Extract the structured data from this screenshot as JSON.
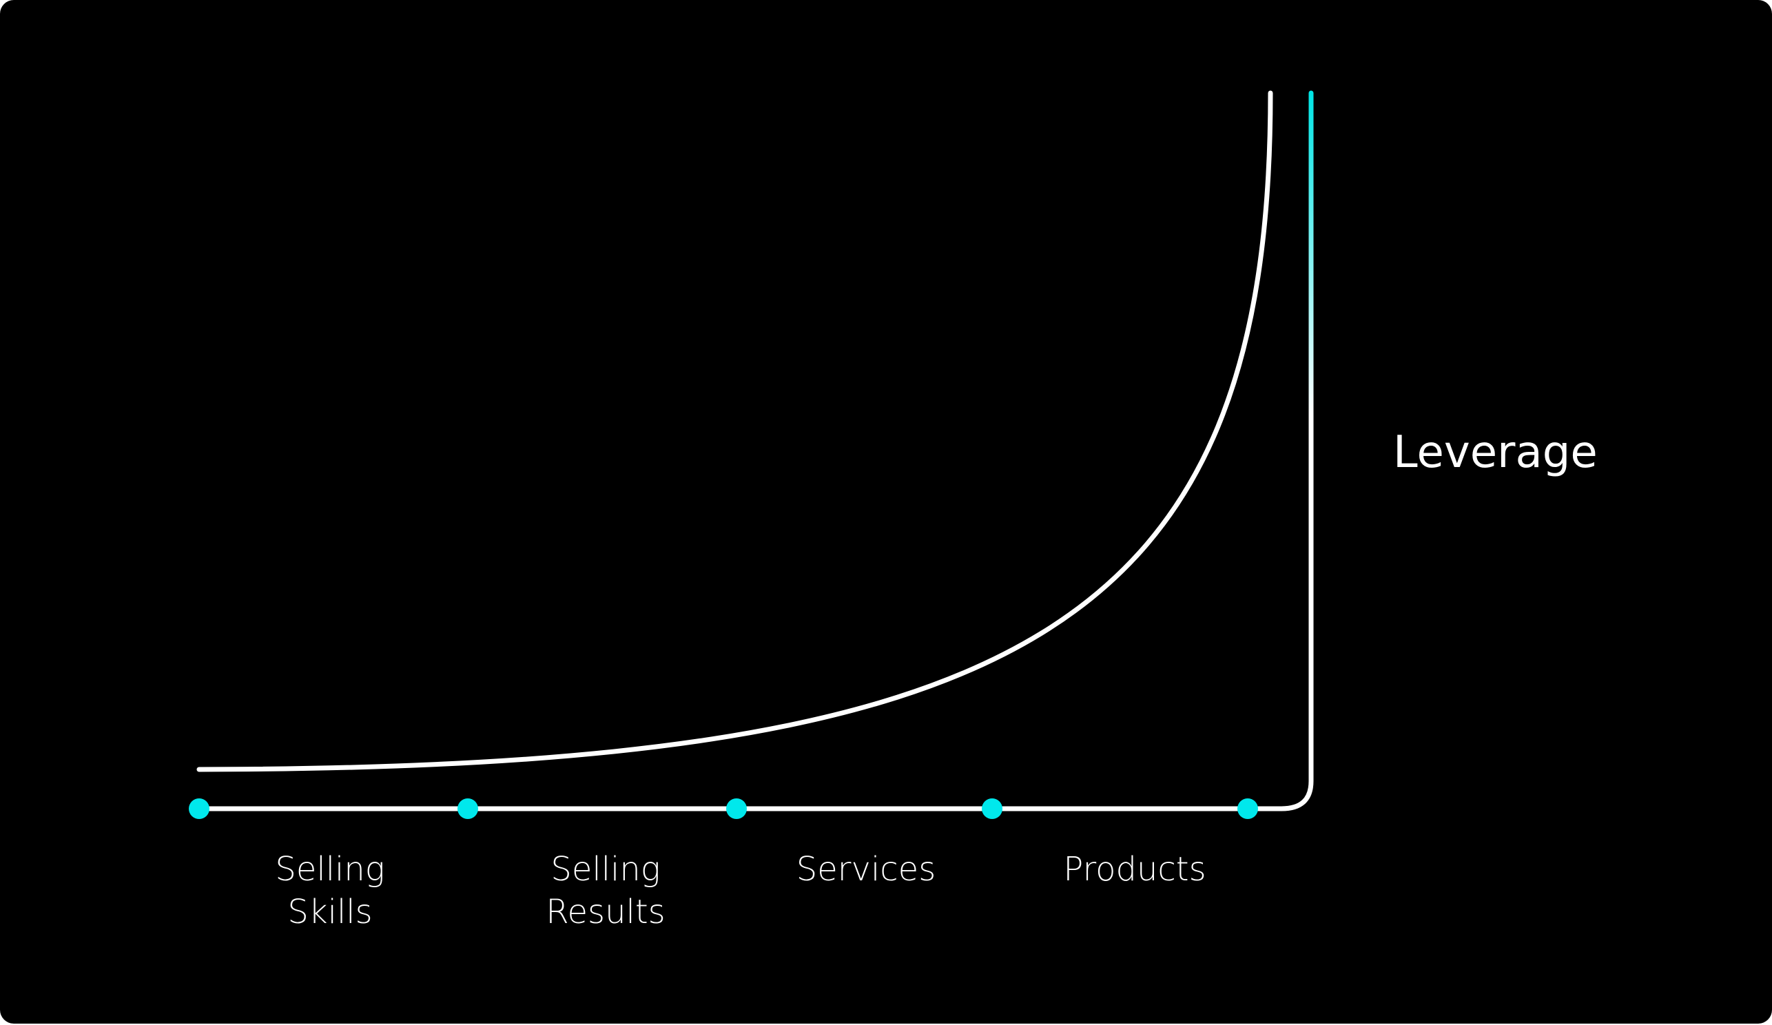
{
  "stages": [
    {
      "label": [
        "Selling",
        "Skills"
      ]
    },
    {
      "label": [
        "Selling",
        "Results"
      ]
    },
    {
      "label": [
        "Services"
      ]
    },
    {
      "label": [
        "Products"
      ]
    }
  ],
  "axis_label": "Leverage"
}
